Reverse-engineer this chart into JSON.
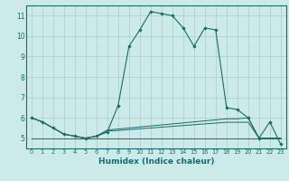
{
  "title": "",
  "xlabel": "Humidex (Indice chaleur)",
  "bg_color": "#cceae7",
  "grid_color": "#aacccc",
  "line_color": "#1a6b6b",
  "xlim": [
    -0.5,
    23.5
  ],
  "ylim": [
    4.5,
    11.5
  ],
  "xticks": [
    0,
    1,
    2,
    3,
    4,
    5,
    6,
    7,
    8,
    9,
    10,
    11,
    12,
    13,
    14,
    15,
    16,
    17,
    18,
    19,
    20,
    21,
    22,
    23
  ],
  "yticks": [
    5,
    6,
    7,
    8,
    9,
    10,
    11
  ],
  "main_line": [
    6.0,
    5.8,
    5.5,
    5.2,
    5.1,
    5.0,
    5.1,
    5.3,
    6.6,
    9.5,
    10.3,
    11.2,
    11.1,
    11.0,
    10.4,
    9.5,
    10.4,
    10.3,
    6.5,
    6.4,
    6.0,
    5.0,
    5.8,
    4.7
  ],
  "line2": [
    6.0,
    5.8,
    5.5,
    5.2,
    5.1,
    5.0,
    5.1,
    5.4,
    5.45,
    5.5,
    5.55,
    5.6,
    5.65,
    5.7,
    5.75,
    5.8,
    5.85,
    5.9,
    5.95,
    5.95,
    6.0,
    5.0,
    5.0,
    5.0
  ],
  "line3": [
    6.0,
    5.8,
    5.5,
    5.2,
    5.1,
    5.0,
    5.1,
    5.35,
    5.38,
    5.42,
    5.46,
    5.5,
    5.54,
    5.58,
    5.62,
    5.66,
    5.7,
    5.74,
    5.78,
    5.78,
    5.78,
    5.0,
    5.0,
    5.0
  ],
  "line4": [
    5.0,
    5.0,
    5.0,
    5.0,
    5.0,
    5.0,
    5.0,
    5.0,
    5.0,
    5.0,
    5.0,
    5.0,
    5.0,
    5.0,
    5.0,
    5.0,
    5.0,
    5.0,
    5.0,
    5.0,
    5.0,
    5.0,
    5.0,
    5.0
  ]
}
